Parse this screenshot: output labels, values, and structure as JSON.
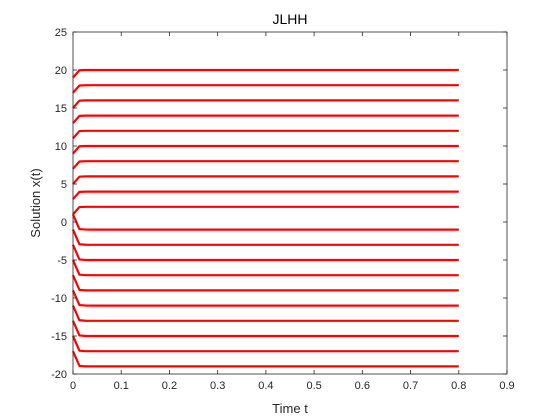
{
  "chart_data": {
    "type": "line",
    "title": "JLHH",
    "xlabel": "Time t",
    "ylabel": "Solution x(t)",
    "xlim": [
      0,
      0.9
    ],
    "ylim": [
      -20,
      25
    ],
    "xticks": [
      0,
      0.1,
      0.2,
      0.3,
      0.4,
      0.5,
      0.6,
      0.7,
      0.8,
      0.9
    ],
    "yticks": [
      -20,
      -15,
      -10,
      -5,
      0,
      5,
      10,
      15,
      20,
      25
    ],
    "xtick_labels": [
      "0",
      "0.1",
      "0.2",
      "0.3",
      "0.4",
      "0.5",
      "0.6",
      "0.7",
      "0.8",
      "0.9"
    ],
    "ytick_labels": [
      "-20",
      "-15",
      "-10",
      "-5",
      "0",
      "5",
      "10",
      "15",
      "20",
      "25"
    ],
    "grid": false,
    "legend": "none",
    "line_color": "#ff0000",
    "x_end": 0.8,
    "series": [
      {
        "final": 20,
        "start": 19
      },
      {
        "final": 18,
        "start": 17
      },
      {
        "final": 16,
        "start": 15
      },
      {
        "final": 14,
        "start": 13
      },
      {
        "final": 12,
        "start": 11
      },
      {
        "final": 10,
        "start": 9
      },
      {
        "final": 8,
        "start": 7
      },
      {
        "final": 6,
        "start": 5
      },
      {
        "final": 4,
        "start": 3
      },
      {
        "final": 2,
        "start": 1
      },
      {
        "final": -1,
        "start": 1
      },
      {
        "final": -3,
        "start": -1
      },
      {
        "final": -5,
        "start": -3
      },
      {
        "final": -7,
        "start": -5
      },
      {
        "final": -9,
        "start": -7
      },
      {
        "final": -11,
        "start": -9
      },
      {
        "final": -13,
        "start": -11
      },
      {
        "final": -15,
        "start": -13
      },
      {
        "final": -17,
        "start": -15
      },
      {
        "final": -19,
        "start": -17
      }
    ]
  }
}
